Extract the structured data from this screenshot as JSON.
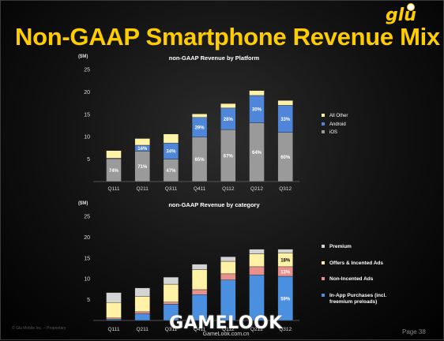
{
  "title": "Non-GAAP Smartphone Revenue Mix",
  "logo_text": "glu",
  "footer": {
    "left_text": "© Glu Mobile Inc. – Proprietary",
    "page": "Page 38"
  },
  "watermark": {
    "main": "GAMELOOK",
    "sub": "GameLook.com.cn"
  },
  "colors": {
    "ios": "#9a9a9a",
    "android": "#4f86d9",
    "all_other": "#fff3a8",
    "iap": "#4a8fe0",
    "non_incented": "#e7908c",
    "offers": "#fff2a6",
    "premium": "#d4d4d4"
  },
  "chart_data": [
    {
      "type": "bar",
      "stacked": true,
      "title": "non-GAAP Revenue by Platform",
      "unit_label": "($M)",
      "ylim": [
        0,
        25
      ],
      "yticks": [
        5,
        10,
        15,
        20,
        25
      ],
      "categories": [
        "Q111",
        "Q211",
        "Q311",
        "Q411",
        "Q112",
        "Q212",
        "Q312"
      ],
      "series": [
        {
          "name": "iOS",
          "color": "#9a9a9a",
          "values": [
            5.1,
            6.8,
            5.0,
            9.9,
            11.6,
            13.1,
            11.0
          ]
        },
        {
          "name": "Android",
          "color": "#4f86d9",
          "values": [
            0.1,
            1.3,
            3.6,
            4.4,
            4.8,
            6.1,
            6.0
          ]
        },
        {
          "name": "All Other",
          "color": "#fff3a8",
          "values": [
            1.7,
            1.5,
            2.0,
            0.8,
            1.0,
            1.1,
            1.1
          ]
        }
      ],
      "data_labels": [
        {
          "category": "Q111",
          "series": "iOS",
          "text": "74%"
        },
        {
          "category": "Q211",
          "series": "iOS",
          "text": "71%"
        },
        {
          "category": "Q211",
          "series": "Android",
          "text": "14%"
        },
        {
          "category": "Q311",
          "series": "iOS",
          "text": "47%"
        },
        {
          "category": "Q311",
          "series": "Android",
          "text": "34%"
        },
        {
          "category": "Q411",
          "series": "iOS",
          "text": "65%"
        },
        {
          "category": "Q411",
          "series": "Android",
          "text": "29%"
        },
        {
          "category": "Q112",
          "series": "iOS",
          "text": "67%"
        },
        {
          "category": "Q112",
          "series": "Android",
          "text": "28%"
        },
        {
          "category": "Q212",
          "series": "iOS",
          "text": "64%"
        },
        {
          "category": "Q212",
          "series": "Android",
          "text": "30%"
        },
        {
          "category": "Q312",
          "series": "iOS",
          "text": "60%"
        },
        {
          "category": "Q312",
          "series": "Android",
          "text": "33%"
        }
      ],
      "legend": [
        "All Other",
        "Android",
        "iOS"
      ],
      "legend_position": "right"
    },
    {
      "type": "bar",
      "stacked": true,
      "title": "non-GAAP Revenue by category",
      "unit_label": "($M)",
      "ylim": [
        0,
        25
      ],
      "yticks": [
        5,
        10,
        15,
        20,
        25
      ],
      "categories": [
        "Q111",
        "Q211",
        "Q311",
        "Q411",
        "Q112",
        "Q212",
        "Q312"
      ],
      "series": [
        {
          "name": "In-App Purchases (incl. freemium preloads)",
          "color": "#4a8fe0",
          "values": [
            0.3,
            1.6,
            3.9,
            6.2,
            9.7,
            10.9,
            10.6
          ]
        },
        {
          "name": "Non-Incented Ads",
          "color": "#e7908c",
          "values": [
            0.3,
            0.5,
            0.5,
            1.2,
            1.5,
            2.0,
            2.3
          ]
        },
        {
          "name": "Offers & Incented Ads",
          "color": "#fff2a6",
          "values": [
            3.7,
            3.7,
            4.3,
            4.8,
            3.0,
            3.1,
            3.3
          ]
        },
        {
          "name": "Premium",
          "color": "#d4d4d4",
          "values": [
            2.4,
            2.0,
            1.7,
            1.3,
            1.1,
            1.1,
            0.9
          ]
        }
      ],
      "data_labels": [
        {
          "category": "Q312",
          "series": "In-App Purchases (incl. freemium preloads)",
          "text": "59%"
        },
        {
          "category": "Q312",
          "series": "Non-Incented Ads",
          "text": "13%"
        },
        {
          "category": "Q312",
          "series": "Offers & Incented Ads",
          "text": "18%"
        }
      ],
      "legend": [
        "Premium",
        "Offers & Incented Ads",
        "Non-Incented Ads",
        "In-App Purchases (incl. freemium preloads)"
      ],
      "legend_position": "right"
    }
  ]
}
